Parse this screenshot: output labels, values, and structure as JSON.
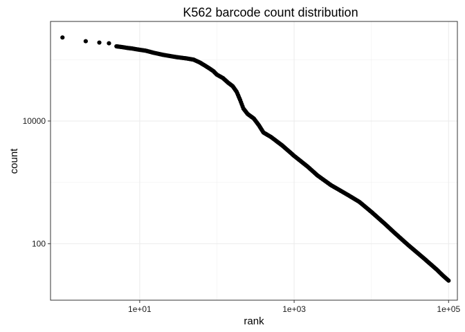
{
  "chart_data": {
    "type": "scatter",
    "title": "K562 barcode count distribution",
    "xlabel": "rank",
    "ylabel": "count",
    "x_scale": "log10",
    "y_scale": "log10",
    "xlim": [
      0.7,
      130000
    ],
    "ylim": [
      12,
      420000
    ],
    "x_ticks": [
      {
        "value": 10,
        "label": "1e+01"
      },
      {
        "value": 1000,
        "label": "1e+03"
      },
      {
        "value": 100000,
        "label": "1e+05"
      }
    ],
    "y_ticks": [
      {
        "value": 100,
        "label": "100"
      },
      {
        "value": 10000,
        "label": "10000"
      }
    ],
    "grid": true,
    "legend": "none",
    "point_color": "#000000",
    "points": [
      [
        1,
        230000
      ],
      [
        2,
        200000
      ],
      [
        3,
        190000
      ],
      [
        4,
        185000
      ],
      [
        5,
        165000
      ],
      [
        6,
        160000
      ],
      [
        7,
        155000
      ],
      [
        8,
        152000
      ],
      [
        9,
        148000
      ],
      [
        10,
        145000
      ],
      [
        12,
        140000
      ],
      [
        15,
        130000
      ],
      [
        20,
        120000
      ],
      [
        30,
        110000
      ],
      [
        40,
        105000
      ],
      [
        50,
        100000
      ],
      [
        60,
        90000
      ],
      [
        70,
        80000
      ],
      [
        80,
        72000
      ],
      [
        90,
        65000
      ],
      [
        100,
        57000
      ],
      [
        120,
        50000
      ],
      [
        140,
        42000
      ],
      [
        160,
        37000
      ],
      [
        180,
        30000
      ],
      [
        200,
        22000
      ],
      [
        220,
        16000
      ],
      [
        250,
        13000
      ],
      [
        300,
        11000
      ],
      [
        350,
        8500
      ],
      [
        400,
        6500
      ],
      [
        500,
        5500
      ],
      [
        700,
        4000
      ],
      [
        1000,
        2700
      ],
      [
        1500,
        1800
      ],
      [
        2000,
        1300
      ],
      [
        3000,
        900
      ],
      [
        5000,
        620
      ],
      [
        7000,
        480
      ],
      [
        10000,
        330
      ],
      [
        15000,
        210
      ],
      [
        20000,
        150
      ],
      [
        30000,
        95
      ],
      [
        50000,
        55
      ],
      [
        70000,
        38
      ],
      [
        85000,
        30
      ],
      [
        100000,
        25
      ]
    ]
  }
}
